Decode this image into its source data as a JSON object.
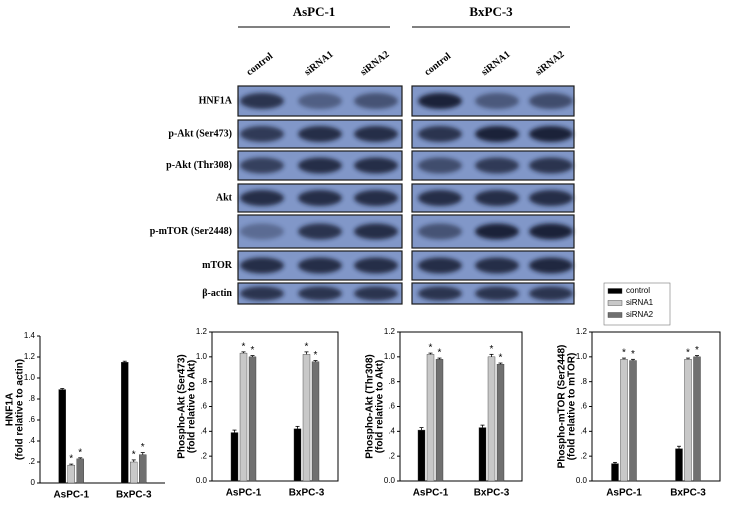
{
  "blot": {
    "groups": [
      "AsPC-1",
      "BxPC-3"
    ],
    "lanes": [
      "control",
      "siRNA1",
      "siRNA2",
      "control",
      "siRNA1",
      "siRNA2"
    ],
    "rows": [
      "HNF1A",
      "p-Akt (Ser473)",
      "p-Akt (Thr308)",
      "Akt",
      "p-mTOR (Ser2448)",
      "mTOR",
      "β-actin"
    ]
  },
  "chart_data": [
    {
      "type": "bar",
      "ylabel": [
        "HNF1A",
        "(fold relative to actin)"
      ],
      "categories": [
        "AsPC-1",
        "BxPC-3"
      ],
      "ylim": [
        0,
        1.4
      ],
      "yticks": [
        0,
        {
          "value": 0.2,
          "label": ".2"
        },
        {
          "value": 0.4,
          "label": ".4"
        },
        {
          "value": 0.6,
          "label": ".6"
        },
        {
          "value": 0.8,
          "label": ".8"
        },
        {
          "value": 1,
          "label": "1.0"
        },
        1.2,
        1.4
      ],
      "box": false,
      "series": [
        {
          "name": "control",
          "color": "#000000",
          "values": [
            0.89,
            1.15
          ],
          "errors": [
            0.01,
            0.01
          ]
        },
        {
          "name": "siRNA1",
          "color": "#c8c8c8",
          "values": [
            0.17,
            0.2
          ],
          "errors": [
            0.01,
            0.02
          ],
          "annotations": [
            "*",
            "*"
          ]
        },
        {
          "name": "siRNA2",
          "color": "#707070",
          "values": [
            0.23,
            0.27
          ],
          "errors": [
            0.01,
            0.02
          ],
          "annotations": [
            "*",
            "*"
          ]
        }
      ]
    },
    {
      "type": "bar",
      "ylabel": [
        "Phospho-Akt (Ser473)",
        "(fold relative to Akt)"
      ],
      "categories": [
        "AsPC-1",
        "BxPC-3"
      ],
      "ylim": [
        0,
        1.2
      ],
      "yticks": [
        {
          "value": 0,
          "label": "0.0"
        },
        {
          "value": 0.2,
          "label": ".2"
        },
        {
          "value": 0.4,
          "label": ".4"
        },
        {
          "value": 0.6,
          "label": ".6"
        },
        {
          "value": 0.8,
          "label": ".8"
        },
        {
          "value": 1,
          "label": "1.0"
        },
        1.2
      ],
      "box": true,
      "series": [
        {
          "name": "control",
          "color": "#000000",
          "values": [
            0.39,
            0.42
          ],
          "errors": [
            0.02,
            0.02
          ]
        },
        {
          "name": "siRNA1",
          "color": "#c8c8c8",
          "values": [
            1.03,
            1.02
          ],
          "errors": [
            0.01,
            0.02
          ],
          "annotations": [
            "*",
            "*"
          ]
        },
        {
          "name": "siRNA2",
          "color": "#707070",
          "values": [
            1.0,
            0.96
          ],
          "errors": [
            0.01,
            0.01
          ],
          "annotations": [
            "*",
            "*"
          ]
        }
      ]
    },
    {
      "type": "bar",
      "ylabel": [
        "Phospho-Akt (Thr308)",
        "(fold relative to Akt)"
      ],
      "categories": [
        "AsPC-1",
        "BxPC-3"
      ],
      "ylim": [
        0,
        1.2
      ],
      "yticks": [
        {
          "value": 0,
          "label": "0.0"
        },
        {
          "value": 0.2,
          "label": ".2"
        },
        {
          "value": 0.4,
          "label": ".4"
        },
        {
          "value": 0.6,
          "label": ".6"
        },
        {
          "value": 0.8,
          "label": ".8"
        },
        {
          "value": 1,
          "label": "1.0"
        },
        1.2
      ],
      "box": true,
      "series": [
        {
          "name": "control",
          "color": "#000000",
          "values": [
            0.41,
            0.43
          ],
          "errors": [
            0.02,
            0.02
          ]
        },
        {
          "name": "siRNA1",
          "color": "#c8c8c8",
          "values": [
            1.02,
            1.0
          ],
          "errors": [
            0.01,
            0.02
          ],
          "annotations": [
            "*",
            "*"
          ]
        },
        {
          "name": "siRNA2",
          "color": "#707070",
          "values": [
            0.98,
            0.94
          ],
          "errors": [
            0.01,
            0.01
          ],
          "annotations": [
            "*",
            "*"
          ]
        }
      ]
    },
    {
      "type": "bar",
      "ylabel": [
        "Phospho-mTOR (Ser2448)",
        "(fold relative to mTOR)"
      ],
      "categories": [
        "AsPC-1",
        "BxPC-3"
      ],
      "ylim": [
        0,
        1.2
      ],
      "yticks": [
        {
          "value": 0,
          "label": "0.0"
        },
        {
          "value": 0.2,
          "label": ".2"
        },
        {
          "value": 0.4,
          "label": ".4"
        },
        {
          "value": 0.6,
          "label": ".6"
        },
        {
          "value": 0.8,
          "label": ".8"
        },
        {
          "value": 1,
          "label": "1.0"
        },
        1.2
      ],
      "box": true,
      "legend": "above",
      "series": [
        {
          "name": "control",
          "color": "#000000",
          "values": [
            0.14,
            0.26
          ],
          "errors": [
            0.01,
            0.02
          ]
        },
        {
          "name": "siRNA1",
          "color": "#c8c8c8",
          "values": [
            0.98,
            0.98
          ],
          "errors": [
            0.01,
            0.01
          ],
          "annotations": [
            "*",
            "*"
          ]
        },
        {
          "name": "siRNA2",
          "color": "#707070",
          "values": [
            0.97,
            1.0
          ],
          "errors": [
            0.01,
            0.01
          ],
          "annotations": [
            "*",
            "*"
          ]
        }
      ]
    }
  ]
}
